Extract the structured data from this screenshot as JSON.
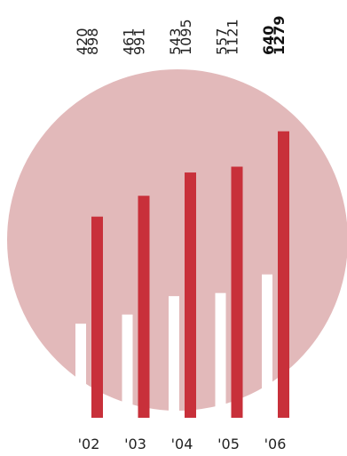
{
  "colors": {
    "background_circle": "#e2b9ba",
    "series_light": "#ffffff",
    "series_dark": "#c8303a",
    "text": "#222222"
  },
  "chart_data": {
    "type": "bar",
    "title": "",
    "xlabel": "",
    "ylabel": "",
    "categories": [
      "'02",
      "'03",
      "'04",
      "'05",
      "'06"
    ],
    "series": [
      {
        "values": [
          420,
          461,
          543,
          557,
          640
        ]
      },
      {
        "values": [
          898,
          991,
          1095,
          1121,
          1279
        ]
      }
    ],
    "value_labels": [
      {
        "top": "420",
        "bottom": "898",
        "bold": false
      },
      {
        "top": "461",
        "bottom": "991",
        "bold": false
      },
      {
        "top": "543",
        "bottom": "1095",
        "bold": false
      },
      {
        "top": "557",
        "bottom": "1121",
        "bold": false
      },
      {
        "top": "640",
        "bottom": "1279",
        "bold": true
      }
    ],
    "grid": false,
    "legend": "none"
  }
}
